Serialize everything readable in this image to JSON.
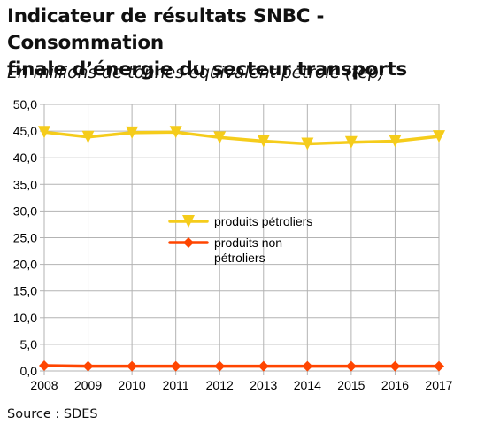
{
  "header": {
    "title_line1": "Indicateur de résultats SNBC - Consommation",
    "title_line2": "finale d’énergie du secteur transports",
    "subtitle": "En millions de tonnes équivalent pétrole (tep)"
  },
  "footer": {
    "source": "Source : SDES"
  },
  "chart_data": {
    "type": "line",
    "categories": [
      "2008",
      "2009",
      "2010",
      "2011",
      "2012",
      "2013",
      "2014",
      "2015",
      "2016",
      "2017"
    ],
    "ylim": [
      0,
      50
    ],
    "yticks": [
      "0,0",
      "5,0",
      "10,0",
      "15,0",
      "20,0",
      "25,0",
      "30,0",
      "35,0",
      "40,0",
      "45,0",
      "50,0"
    ],
    "grid": true,
    "legend_position": "center",
    "series": [
      {
        "name": "produits pétroliers",
        "legend_lines": [
          "produits pétroliers"
        ],
        "values": [
          44.8,
          43.9,
          44.7,
          44.8,
          43.8,
          43.1,
          42.6,
          42.9,
          43.1,
          44.0
        ],
        "color": "#f5cc1b",
        "marker": "triangle-down"
      },
      {
        "name": "produits non pétroliers",
        "legend_lines": [
          "produits non",
          "pétroliers"
        ],
        "values": [
          1.0,
          0.9,
          0.9,
          0.9,
          0.9,
          0.9,
          0.9,
          0.9,
          0.9,
          0.9
        ],
        "color": "#ff4500",
        "marker": "diamond"
      }
    ]
  }
}
